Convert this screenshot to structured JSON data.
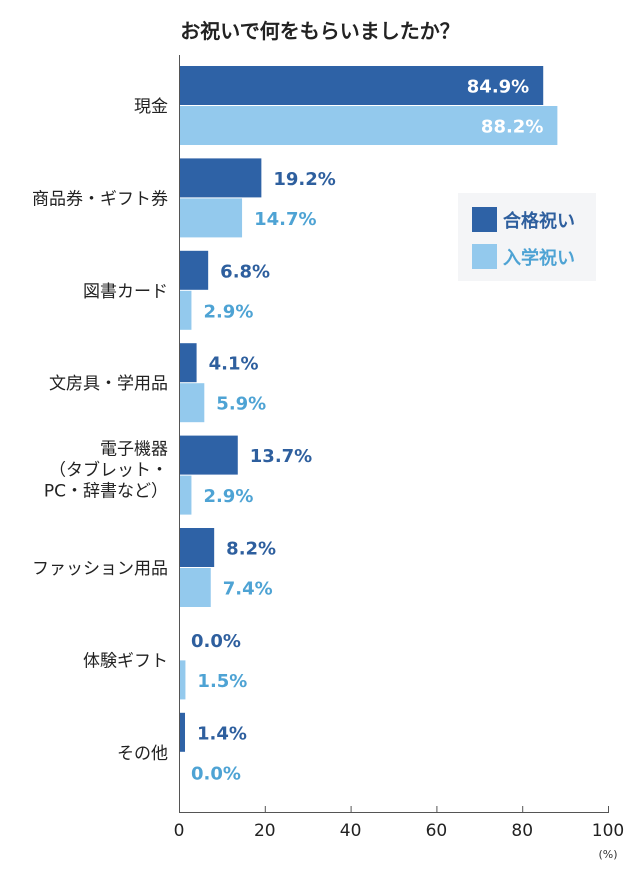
{
  "chart_data": {
    "type": "bar",
    "orientation": "horizontal",
    "title": "お祝いで何をもらいましたか？",
    "categories": [
      [
        "現金"
      ],
      [
        "商品券・ギフト券"
      ],
      [
        "図書カード"
      ],
      [
        "文房具・学用品"
      ],
      [
        "電子機器",
        "（タブレット・",
        "PC・辞書など）"
      ],
      [
        "ファッション用品"
      ],
      [
        "体験ギフト"
      ],
      [
        "その他"
      ]
    ],
    "series": [
      {
        "name": "合格祝い",
        "color": "#2e62a6",
        "label_color": "#2e5f9e",
        "values": [
          84.9,
          19.2,
          6.8,
          4.1,
          13.7,
          8.2,
          0.0,
          1.4
        ]
      },
      {
        "name": "入学祝い",
        "color": "#93c9ed",
        "label_color": "#4ea3d4",
        "values": [
          88.2,
          14.7,
          2.9,
          5.9,
          2.9,
          7.4,
          1.5,
          0.0
        ]
      }
    ],
    "xlim": [
      0,
      100
    ],
    "xticks": [
      0,
      20,
      40,
      60,
      80,
      100
    ],
    "unit": "(%)",
    "grid": false,
    "legend": "top-right"
  }
}
